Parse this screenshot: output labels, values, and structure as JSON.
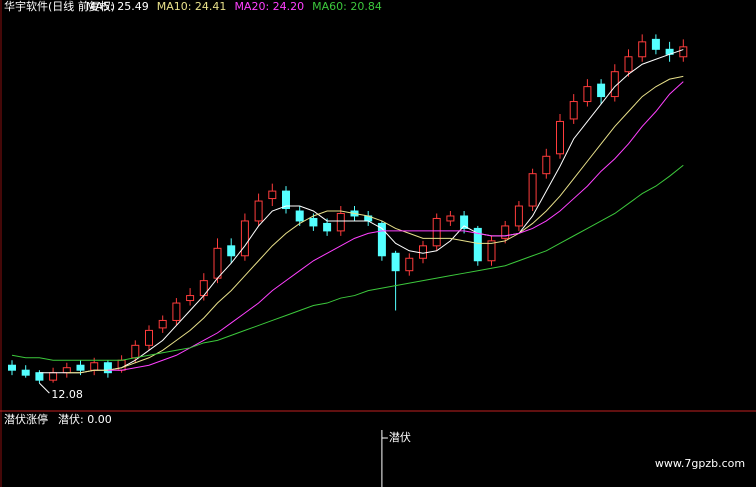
{
  "chart_data": {
    "type": "candlestick",
    "title": "华宇软件(日线 前复权)",
    "open": [
      12.8,
      12.6,
      12.5,
      12.2,
      12.5,
      12.8,
      12.6,
      12.9,
      12.6,
      13.1,
      13.6,
      14.3,
      14.6,
      15.4,
      15.6,
      16.3,
      17.6,
      17.2,
      18.6,
      19.5,
      19.8,
      19.0,
      18.7,
      18.5,
      18.2,
      19.0,
      18.8,
      18.5,
      17.3,
      16.6,
      17.1,
      17.6,
      18.6,
      18.8,
      18.3,
      17.0,
      17.9,
      18.4,
      19.2,
      20.5,
      21.3,
      22.7,
      23.4,
      24.1,
      23.6,
      24.6,
      25.2,
      25.9,
      25.5,
      25.2
    ],
    "high": [
      13.0,
      12.8,
      12.6,
      12.7,
      12.9,
      13.0,
      13.1,
      13.0,
      13.2,
      13.8,
      14.4,
      14.8,
      15.5,
      15.9,
      16.5,
      17.9,
      17.9,
      18.9,
      19.7,
      20.1,
      20.0,
      19.2,
      18.9,
      18.7,
      19.2,
      19.2,
      19.0,
      18.6,
      17.4,
      17.3,
      17.8,
      18.9,
      19.0,
      19.0,
      18.4,
      18.0,
      18.6,
      19.4,
      20.7,
      21.5,
      22.9,
      23.7,
      24.3,
      24.3,
      24.9,
      25.5,
      26.1,
      26.1,
      25.8,
      25.9
    ],
    "low": [
      12.4,
      12.3,
      12.08,
      12.1,
      12.3,
      12.4,
      12.4,
      12.3,
      12.5,
      12.9,
      13.4,
      14.1,
      14.4,
      15.2,
      15.4,
      16.1,
      16.9,
      17.0,
      18.4,
      19.2,
      18.9,
      18.4,
      18.2,
      18.0,
      18.0,
      18.6,
      18.4,
      17.0,
      15.0,
      16.4,
      16.9,
      17.4,
      18.4,
      18.1,
      16.8,
      16.8,
      17.7,
      18.2,
      19.0,
      20.3,
      21.1,
      22.5,
      23.2,
      23.3,
      23.4,
      24.4,
      25.0,
      25.3,
      25.0,
      25.0
    ],
    "close": [
      12.6,
      12.4,
      12.2,
      12.5,
      12.7,
      12.6,
      12.9,
      12.5,
      13.0,
      13.6,
      14.2,
      14.6,
      15.3,
      15.6,
      16.2,
      17.5,
      17.2,
      18.6,
      19.4,
      19.8,
      19.1,
      18.6,
      18.4,
      18.2,
      18.9,
      18.8,
      18.6,
      17.2,
      16.6,
      17.1,
      17.6,
      18.7,
      18.8,
      18.3,
      17.0,
      17.8,
      18.4,
      19.2,
      20.5,
      21.2,
      22.6,
      23.4,
      24.0,
      23.6,
      24.6,
      25.2,
      25.8,
      25.5,
      25.3,
      25.6
    ],
    "up_color": "#ff3c3c",
    "down_color": "#54ffff",
    "series": [
      {
        "name": "MA5: 25.49",
        "color": "#ffffff",
        "values": [
          null,
          null,
          12.5,
          12.5,
          12.5,
          12.5,
          12.6,
          12.6,
          12.7,
          13.0,
          13.4,
          13.8,
          14.4,
          15.0,
          15.6,
          16.3,
          16.9,
          17.6,
          18.4,
          19.0,
          19.2,
          19.2,
          19.0,
          18.6,
          18.6,
          18.6,
          18.6,
          18.3,
          17.7,
          17.4,
          17.3,
          17.4,
          17.8,
          18.4,
          18.1,
          18.0,
          18.0,
          18.1,
          18.8,
          19.8,
          20.8,
          21.9,
          22.6,
          23.3,
          24.0,
          24.5,
          24.9,
          25.1,
          25.3,
          25.49
        ]
      },
      {
        "name": "MA10: 24.41",
        "color": "#e8e08a",
        "values": [
          null,
          null,
          null,
          null,
          12.5,
          12.5,
          12.6,
          12.6,
          12.7,
          12.9,
          13.1,
          13.4,
          13.8,
          14.2,
          14.7,
          15.3,
          15.8,
          16.4,
          17.0,
          17.6,
          18.1,
          18.5,
          18.8,
          19.0,
          19.0,
          18.9,
          18.8,
          18.6,
          18.3,
          18.1,
          17.9,
          17.9,
          17.9,
          17.8,
          17.7,
          17.7,
          17.8,
          18.1,
          18.5,
          19.0,
          19.6,
          20.3,
          21.0,
          21.7,
          22.4,
          23.0,
          23.6,
          24.0,
          24.3,
          24.41
        ]
      },
      {
        "name": "MA20: 24.20",
        "color": "#ff40ff",
        "values": [
          null,
          null,
          null,
          null,
          null,
          null,
          null,
          12.6,
          12.6,
          12.7,
          12.8,
          13.0,
          13.2,
          13.5,
          13.8,
          14.1,
          14.5,
          14.9,
          15.3,
          15.8,
          16.2,
          16.6,
          17.0,
          17.3,
          17.6,
          17.9,
          18.1,
          18.2,
          18.2,
          18.2,
          18.2,
          18.2,
          18.2,
          18.2,
          18.1,
          18.0,
          18.0,
          18.1,
          18.3,
          18.6,
          19.0,
          19.5,
          20.0,
          20.6,
          21.1,
          21.7,
          22.4,
          23.0,
          23.7,
          24.2
        ]
      },
      {
        "name": "MA60: 20.84",
        "color": "#3cc83c",
        "values": [
          13.2,
          13.1,
          13.1,
          13.0,
          13.0,
          13.0,
          13.0,
          13.0,
          13.0,
          13.1,
          13.2,
          13.3,
          13.4,
          13.5,
          13.7,
          13.8,
          14.0,
          14.2,
          14.4,
          14.6,
          14.8,
          15.0,
          15.2,
          15.3,
          15.5,
          15.6,
          15.8,
          15.9,
          16.0,
          16.1,
          16.2,
          16.3,
          16.4,
          16.5,
          16.6,
          16.7,
          16.8,
          17.0,
          17.2,
          17.4,
          17.7,
          18.0,
          18.3,
          18.6,
          18.9,
          19.3,
          19.7,
          20.0,
          20.4,
          20.84
        ]
      }
    ],
    "annotations": [
      {
        "text": "12.08",
        "value": 12.08,
        "index": 2
      }
    ],
    "ylim": [
      11,
      27
    ]
  },
  "indicator": {
    "title": "潜伏涨停",
    "label": "潜伏: 0.00",
    "signal_label": "潜伏",
    "values": [
      0,
      0,
      0,
      0,
      0,
      0,
      0,
      0,
      0,
      0,
      0,
      0,
      0,
      0,
      0,
      0,
      0,
      0,
      0,
      0,
      0,
      0,
      0,
      0,
      0,
      0,
      0,
      1,
      0,
      0,
      0,
      0,
      0,
      0,
      0,
      0,
      0,
      0,
      0,
      0,
      0,
      0,
      0,
      0,
      0,
      0,
      0,
      0,
      0,
      0
    ],
    "ylim": [
      0,
      1
    ]
  },
  "watermark": "www.7gpzb.com"
}
